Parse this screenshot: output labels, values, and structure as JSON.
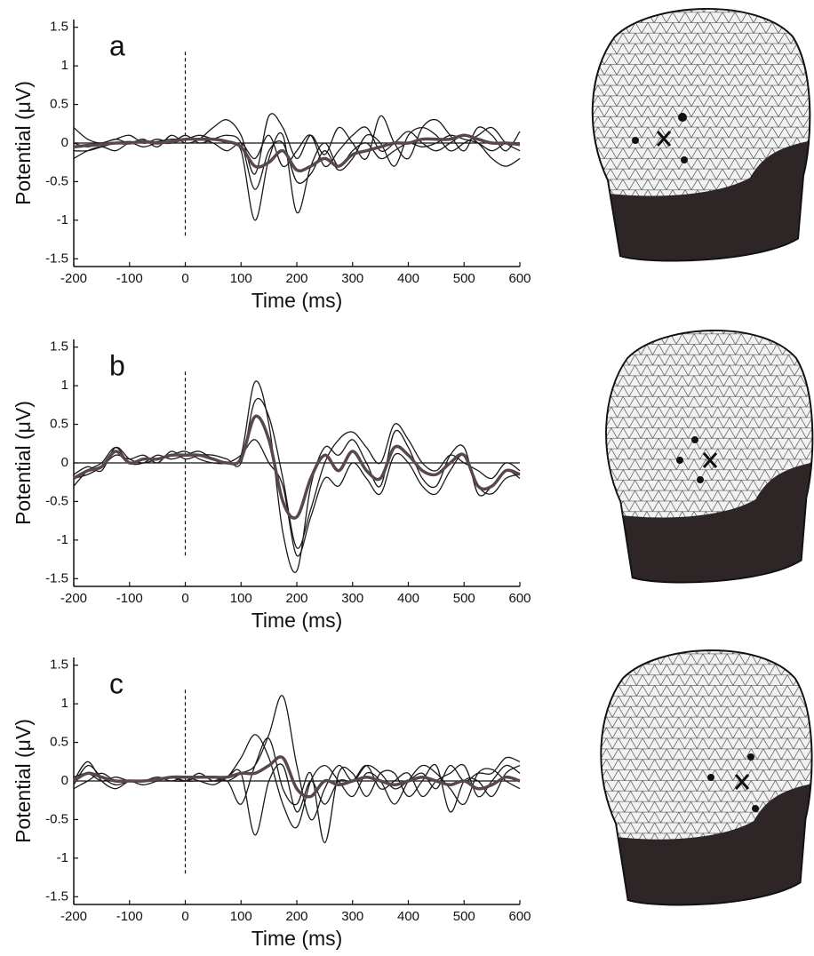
{
  "chart_data": [
    {
      "type": "line",
      "annotation": "a",
      "x_label": "Time (ms)",
      "y_label": "Potential (μV)",
      "x": [
        -200,
        -175,
        -150,
        -125,
        -100,
        -75,
        -50,
        -25,
        0,
        25,
        50,
        75,
        100,
        125,
        150,
        175,
        200,
        225,
        250,
        275,
        300,
        325,
        350,
        375,
        400,
        425,
        450,
        475,
        500,
        525,
        550,
        575,
        600
      ],
      "xlim": [
        -200,
        600
      ],
      "xticks": [
        -200,
        -100,
        0,
        100,
        200,
        300,
        400,
        500,
        600
      ],
      "ylim": [
        -1.6,
        1.6
      ],
      "yticks": [
        -1.5,
        -1,
        -0.5,
        0,
        0.5,
        1,
        1.5
      ],
      "hline": 0,
      "vline": {
        "x": 0,
        "ylim": [
          -1.2,
          1.2
        ]
      },
      "series": [
        {
          "color": "#1a1a1a",
          "width": 1.3,
          "values": [
            -0.1,
            -0.1,
            -0.05,
            0,
            0.02,
            0,
            0.02,
            0.05,
            0.05,
            0.1,
            0.05,
            0,
            -0.1,
            -1.0,
            -0.2,
            0.1,
            -0.9,
            -0.3,
            0,
            -0.3,
            -0.1,
            0,
            -0.2,
            -0.1,
            0,
            -0.05,
            0,
            0.1,
            0.05,
            0,
            -0.1,
            0,
            0
          ]
        },
        {
          "color": "#1a1a1a",
          "width": 1.3,
          "values": [
            0.2,
            0.05,
            0,
            0.05,
            0,
            0.05,
            -0.05,
            0.1,
            0,
            0.05,
            0.2,
            0.3,
            0.1,
            -0.4,
            0.35,
            0.2,
            -0.2,
            0.1,
            -0.15,
            0.2,
            0,
            -0.2,
            0.35,
            0,
            -0.2,
            0.2,
            0.3,
            0.1,
            -0.1,
            0.2,
            0.1,
            -0.1,
            0.15
          ]
        },
        {
          "color": "#1a1a1a",
          "width": 1.3,
          "values": [
            -0.2,
            -0.1,
            -0.05,
            -0.1,
            0,
            -0.05,
            0,
            0,
            0.1,
            0,
            0.05,
            0.1,
            0,
            -0.6,
            -0.1,
            0,
            -0.5,
            -0.4,
            -0.1,
            -0.35,
            -0.2,
            0.1,
            0,
            -0.3,
            0.1,
            0.2,
            0.1,
            -0.1,
            0,
            0.1,
            0.2,
            0,
            -0.1
          ]
        },
        {
          "color": "#1a1a1a",
          "width": 1.3,
          "values": [
            0,
            -0.05,
            0,
            0.05,
            0.1,
            0,
            0.05,
            0,
            0.05,
            0.05,
            0,
            -0.1,
            0,
            -0.2,
            0.1,
            -0.3,
            -0.1,
            0.1,
            -0.3,
            -0.1,
            0.1,
            0.2,
            -0.1,
            0,
            0.15,
            0,
            -0.1,
            0,
            0.1,
            0,
            -0.2,
            -0.3,
            -0.2
          ]
        },
        {
          "color": "#5a4848",
          "width": 3.5,
          "values": [
            -0.05,
            -0.03,
            -0.02,
            0,
            0,
            0.02,
            0,
            0.02,
            0.05,
            0.05,
            0.05,
            0.02,
            -0.05,
            -0.3,
            -0.25,
            -0.1,
            -0.35,
            -0.3,
            -0.2,
            -0.3,
            -0.15,
            -0.1,
            -0.05,
            0,
            0,
            0.05,
            0.05,
            0.05,
            0.1,
            0.05,
            0,
            0,
            -0.02
          ]
        }
      ]
    },
    {
      "type": "line",
      "annotation": "b",
      "x_label": "Time (ms)",
      "y_label": "Potential (μV)",
      "x": [
        -200,
        -175,
        -150,
        -125,
        -100,
        -75,
        -50,
        -25,
        0,
        25,
        50,
        75,
        100,
        125,
        150,
        175,
        200,
        225,
        250,
        275,
        300,
        325,
        350,
        375,
        400,
        425,
        450,
        475,
        500,
        525,
        550,
        575,
        600
      ],
      "xlim": [
        -200,
        600
      ],
      "xticks": [
        -200,
        -100,
        0,
        100,
        200,
        300,
        400,
        500,
        600
      ],
      "ylim": [
        -1.6,
        1.6
      ],
      "yticks": [
        -1.5,
        -1,
        -0.5,
        0,
        0.5,
        1,
        1.5
      ],
      "hline": 0,
      "vline": {
        "x": 0,
        "ylim": [
          -1.2,
          1.2
        ]
      },
      "series": [
        {
          "color": "#1a1a1a",
          "width": 1.3,
          "values": [
            -0.3,
            -0.1,
            0,
            0.2,
            0,
            0,
            0.1,
            0.05,
            0.1,
            0.15,
            0.05,
            0,
            0.1,
            1.05,
            0.5,
            -0.9,
            -1.4,
            -0.3,
            0.2,
            0.1,
            0.3,
            0,
            -0.3,
            0.4,
            0.2,
            -0.2,
            -0.3,
            0.1,
            0.2,
            -0.4,
            -0.3,
            -0.1,
            -0.2
          ]
        },
        {
          "color": "#1a1a1a",
          "width": 1.3,
          "values": [
            -0.2,
            -0.15,
            -0.05,
            0.1,
            0.05,
            0.1,
            0,
            0.15,
            0.05,
            0.1,
            0.1,
            0.05,
            0,
            0.8,
            0.6,
            -0.2,
            -1.1,
            -0.6,
            0,
            0.3,
            0.4,
            0.2,
            0,
            0.5,
            0.3,
            0,
            -0.1,
            0.1,
            0,
            -0.1,
            -0.2,
            0,
            -0.1
          ]
        },
        {
          "color": "#1a1a1a",
          "width": 1.3,
          "values": [
            -0.15,
            -0.05,
            -0.1,
            0.2,
            0.05,
            0,
            0.05,
            0.1,
            0.15,
            0.05,
            0,
            0,
            0.1,
            0.3,
            0,
            -0.3,
            -1.2,
            -0.7,
            -0.2,
            -0.3,
            0,
            -0.2,
            -0.4,
            0.1,
            0,
            -0.3,
            -0.4,
            -0.1,
            0.1,
            -0.3,
            -0.4,
            -0.2,
            -0.15
          ]
        },
        {
          "color": "#5a4848",
          "width": 3.5,
          "values": [
            -0.2,
            -0.1,
            -0.05,
            0.15,
            0,
            0.05,
            0.05,
            0.1,
            0.1,
            0.1,
            0.05,
            0,
            0.05,
            0.6,
            0.3,
            -0.5,
            -0.7,
            -0.2,
            0.1,
            -0.1,
            0.15,
            -0.1,
            -0.2,
            0.2,
            0.1,
            -0.1,
            -0.15,
            0,
            0.1,
            -0.3,
            -0.3,
            -0.1,
            -0.15
          ]
        }
      ]
    },
    {
      "type": "line",
      "annotation": "c",
      "x_label": "Time (ms)",
      "y_label": "Potential (μV)",
      "x": [
        -200,
        -175,
        -150,
        -125,
        -100,
        -75,
        -50,
        -25,
        0,
        25,
        50,
        75,
        100,
        125,
        150,
        175,
        200,
        225,
        250,
        275,
        300,
        325,
        350,
        375,
        400,
        425,
        450,
        475,
        500,
        525,
        550,
        575,
        600
      ],
      "xlim": [
        -200,
        600
      ],
      "xticks": [
        -200,
        -100,
        0,
        100,
        200,
        300,
        400,
        500,
        600
      ],
      "ylim": [
        -1.6,
        1.6
      ],
      "yticks": [
        -1.5,
        -1,
        -0.5,
        0,
        0.5,
        1,
        1.5
      ],
      "hline": 0,
      "vline": {
        "x": 0,
        "ylim": [
          -1.2,
          1.2
        ]
      },
      "series": [
        {
          "color": "#1a1a1a",
          "width": 1.3,
          "values": [
            0,
            0.25,
            0,
            -0.1,
            0,
            0,
            0,
            0,
            0,
            0.05,
            0.05,
            0,
            0.1,
            0.2,
            0.6,
            1.1,
            0.2,
            -0.5,
            -0.1,
            0.2,
            0,
            0.2,
            0.1,
            -0.1,
            0,
            0.1,
            -0.1,
            0.2,
            0,
            0.1,
            0.1,
            0.3,
            0.25
          ]
        },
        {
          "color": "#1a1a1a",
          "width": 1.3,
          "values": [
            -0.1,
            0,
            0.1,
            0,
            0,
            -0.05,
            0,
            0.05,
            0,
            0.1,
            0,
            0.05,
            0.3,
            0.6,
            0.3,
            -0.3,
            -0.6,
            0,
            0.2,
            0,
            -0.2,
            0.1,
            0,
            -0.3,
            0,
            0.2,
            0.1,
            -0.1,
            -0.3,
            0.1,
            0.15,
            0,
            -0.1
          ]
        },
        {
          "color": "#1a1a1a",
          "width": 1.3,
          "values": [
            0.05,
            0.1,
            0,
            0.05,
            0,
            0,
            0.05,
            0,
            0.05,
            0,
            -0.05,
            0,
            -0.3,
            0.2,
            0.55,
            -0.1,
            -0.3,
            0.1,
            -0.8,
            0.1,
            0.1,
            -0.2,
            0.1,
            0.1,
            -0.2,
            0,
            0.2,
            -0.4,
            0,
            0,
            -0.2,
            0.1,
            0.2
          ]
        },
        {
          "color": "#1a1a1a",
          "width": 1.3,
          "values": [
            -0.05,
            0.2,
            0.05,
            -0.05,
            0,
            0,
            0.02,
            0.05,
            0,
            0,
            0,
            0.05,
            0.1,
            -0.7,
            0,
            0.2,
            -0.4,
            0,
            -0.3,
            0,
            0,
            0.2,
            -0.1,
            0,
            0.1,
            -0.2,
            0,
            0.1,
            0.2,
            -0.2,
            0,
            0.2,
            0.1
          ]
        },
        {
          "color": "#5a4848",
          "width": 3.5,
          "values": [
            0,
            0.1,
            0.05,
            0,
            0,
            0,
            0.02,
            0.05,
            0.05,
            0.05,
            0.05,
            0.05,
            0.1,
            0.1,
            0.2,
            0.3,
            -0.1,
            -0.2,
            0,
            -0.05,
            0,
            0.05,
            0,
            -0.05,
            0,
            0.05,
            0,
            -0.05,
            0,
            -0.1,
            -0.05,
            0.05,
            0
          ]
        }
      ]
    }
  ]
}
